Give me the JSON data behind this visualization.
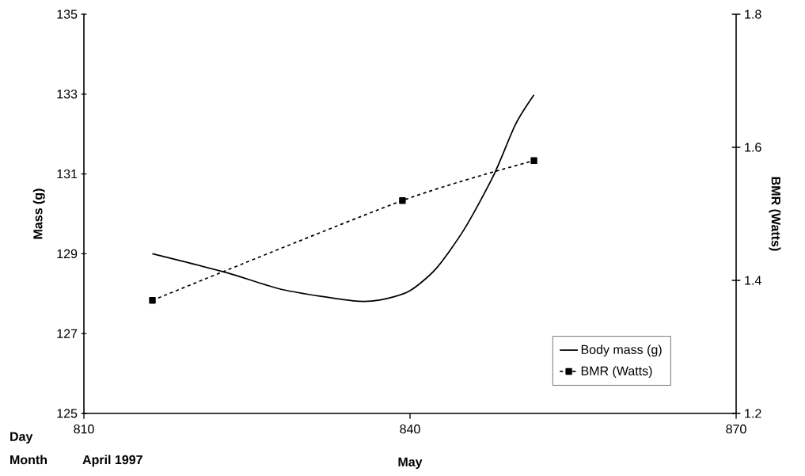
{
  "chart_data": {
    "type": "line",
    "xlabel": "Day",
    "ylabel": "Mass (g)",
    "y2label": "BMR (Watts)",
    "annotations": [
      "Month",
      "April 1997",
      "May"
    ],
    "xlim": [
      810,
      870
    ],
    "xticks": [
      810,
      840,
      870
    ],
    "ylim": [
      125,
      135
    ],
    "yticks": [
      125,
      127,
      129,
      131,
      133,
      135
    ],
    "y2lim": [
      1.2,
      1.8
    ],
    "y2ticks": [
      1.2,
      1.4,
      1.6,
      1.8
    ],
    "legend": "bottom right",
    "grid": false,
    "series": [
      {
        "name": "Body mass (g)",
        "color": "#000000",
        "marker": "none",
        "line_style": "solid",
        "x": [
          816.3,
          823.1,
          828.3,
          834.8,
          837.2,
          839.9,
          842.4,
          845.0,
          847.7,
          849.7,
          851.4
        ],
        "values": [
          129.0,
          128.53,
          128.1,
          127.82,
          127.84,
          128.06,
          128.63,
          129.62,
          130.97,
          132.24,
          132.98
        ]
      },
      {
        "name": "BMR (Watts)",
        "color": "#000000",
        "marker": "square",
        "line_style": "dotted",
        "axis": "y2",
        "x": [
          816.3,
          839.3,
          851.4
        ],
        "values": [
          1.37,
          1.52,
          1.58
        ]
      }
    ]
  }
}
